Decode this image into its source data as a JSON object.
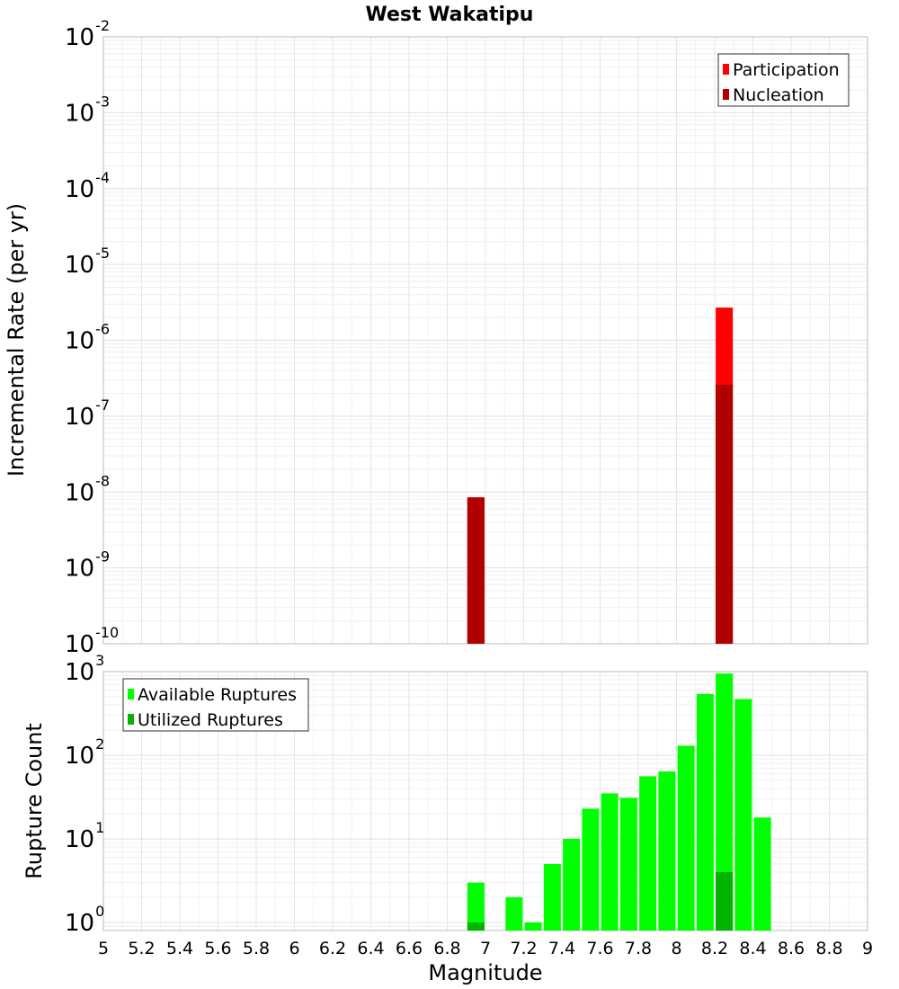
{
  "chart_data": [
    {
      "type": "bar",
      "title": "West Wakatipu",
      "ylabel": "Incremental Rate (per yr)",
      "yscale": "log",
      "ylim": [
        1e-10,
        0.01
      ],
      "xlim": [
        5,
        9
      ],
      "ytick_base": "10",
      "yticks": [
        {
          "value": 1e-10,
          "exp": "-10"
        },
        {
          "value": 1e-09,
          "exp": "-9"
        },
        {
          "value": 1e-08,
          "exp": "-8"
        },
        {
          "value": 1e-07,
          "exp": "-7"
        },
        {
          "value": 1e-06,
          "exp": "-6"
        },
        {
          "value": 1e-05,
          "exp": "-5"
        },
        {
          "value": 0.0001,
          "exp": "-4"
        },
        {
          "value": 0.001,
          "exp": "-3"
        },
        {
          "value": 0.01,
          "exp": "-2"
        }
      ],
      "legend": {
        "position": "top-right",
        "entries": [
          "Participation",
          "Nucleation"
        ]
      },
      "series": [
        {
          "name": "Participation",
          "color": "#ff0000",
          "points": [
            {
              "x": 6.95,
              "y": 8.5e-09
            },
            {
              "x": 8.25,
              "y": 2.7e-06
            }
          ]
        },
        {
          "name": "Nucleation",
          "color": "#b00000",
          "points": [
            {
              "x": 6.95,
              "y": 8.5e-09
            },
            {
              "x": 8.25,
              "y": 2.6e-07
            }
          ]
        }
      ],
      "grid": true
    },
    {
      "type": "bar",
      "xlabel": "Magnitude",
      "ylabel": "Rupture Count",
      "yscale": "log",
      "ylim": [
        0.8,
        1000
      ],
      "xlim": [
        5,
        9
      ],
      "ytick_base": "10",
      "yticks": [
        {
          "value": 1,
          "exp": "0"
        },
        {
          "value": 10,
          "exp": "1"
        },
        {
          "value": 100,
          "exp": "2"
        },
        {
          "value": 1000,
          "exp": "3"
        }
      ],
      "xticks": [
        "5",
        "5.2",
        "5.4",
        "5.6",
        "5.8",
        "6",
        "6.2",
        "6.4",
        "6.6",
        "6.8",
        "7",
        "7.2",
        "7.4",
        "7.6",
        "7.8",
        "8",
        "8.2",
        "8.4",
        "8.6",
        "8.8",
        "9"
      ],
      "legend": {
        "position": "top-left",
        "entries": [
          "Available Ruptures",
          "Utilized Ruptures"
        ]
      },
      "series": [
        {
          "name": "Available Ruptures",
          "color": "#00ff00",
          "points": [
            {
              "x": 6.95,
              "y": 3
            },
            {
              "x": 7.15,
              "y": 2
            },
            {
              "x": 7.25,
              "y": 1
            },
            {
              "x": 7.35,
              "y": 5
            },
            {
              "x": 7.45,
              "y": 10
            },
            {
              "x": 7.55,
              "y": 23
            },
            {
              "x": 7.65,
              "y": 35
            },
            {
              "x": 7.75,
              "y": 31
            },
            {
              "x": 7.85,
              "y": 56
            },
            {
              "x": 7.95,
              "y": 64
            },
            {
              "x": 8.05,
              "y": 130
            },
            {
              "x": 8.15,
              "y": 540
            },
            {
              "x": 8.25,
              "y": 950
            },
            {
              "x": 8.35,
              "y": 470
            },
            {
              "x": 8.45,
              "y": 18
            }
          ]
        },
        {
          "name": "Utilized Ruptures",
          "color": "#00b400",
          "points": [
            {
              "x": 6.95,
              "y": 1
            },
            {
              "x": 8.25,
              "y": 4
            }
          ]
        }
      ],
      "grid": true
    }
  ]
}
